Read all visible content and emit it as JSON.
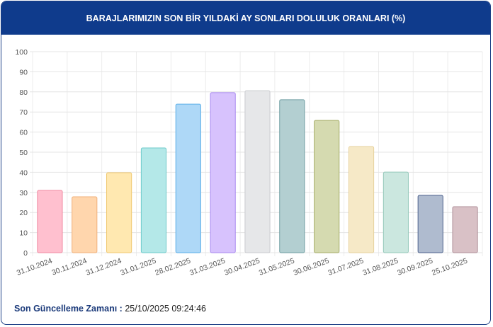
{
  "chart_data": {
    "type": "bar",
    "title": "BARAJLARIMIZIN SON BİR YILDAKİ AY SONLARI DOLULUK ORANLARI (%)",
    "categories": [
      "31.10.2024",
      "30.11.2024",
      "31.12.2024",
      "31.01.2025",
      "28.02.2025",
      "31.03.2025",
      "30.04.2025",
      "31.05.2025",
      "30.06.2025",
      "31.07.2025",
      "31.08.2025",
      "30.09.2025",
      "25.10.2025"
    ],
    "values": [
      31,
      27.8,
      39.8,
      52.1,
      73.9,
      79.6,
      80.6,
      76.1,
      65.8,
      52.8,
      40.1,
      28.5,
      22.9
    ],
    "colors": [
      "#ffc0cf",
      "#ffd6ad",
      "#ffe8b0",
      "#b4e8e8",
      "#aed8f7",
      "#d7c2fd",
      "#e6e7e9",
      "#b3cfd1",
      "#d5dab0",
      "#f6e9c7",
      "#cbe7df",
      "#afbbcf",
      "#d9c1c6"
    ],
    "border_colors": [
      "#f08aa3",
      "#f0b07a",
      "#f0c970",
      "#6ccaca",
      "#5aaee8",
      "#a98af0",
      "#c9cbcf",
      "#6f9ea2",
      "#a7ae6a",
      "#e6d29e",
      "#94c8ba",
      "#4d628c",
      "#b0909a"
    ],
    "ylim": [
      0,
      100
    ],
    "yticks": [
      0,
      10,
      20,
      30,
      40,
      50,
      60,
      70,
      80,
      90,
      100
    ],
    "grid": true
  },
  "footer": {
    "label": "Son Güncelleme Zamanı :",
    "value": "25/10/2025 09:24:46"
  }
}
